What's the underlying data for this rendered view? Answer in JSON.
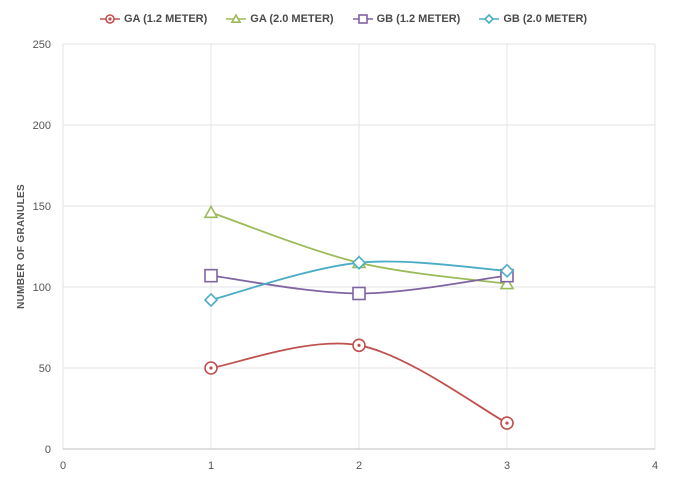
{
  "chart_data": {
    "type": "line",
    "title": "",
    "xlabel": "",
    "ylabel": "NUMBER OF GRANULES",
    "xlim": [
      0,
      4
    ],
    "ylim": [
      0,
      250
    ],
    "x_ticks": [
      0,
      1,
      2,
      3,
      4
    ],
    "y_ticks": [
      0,
      50,
      100,
      150,
      200,
      250
    ],
    "grid": true,
    "legend_position": "top",
    "smooth": true,
    "x": [
      1,
      2,
      3
    ],
    "series": [
      {
        "name": "GA (1.2 METER)",
        "values": [
          50,
          64,
          16
        ],
        "color": "#c0504d",
        "marker": "circle-dot"
      },
      {
        "name": "GA (2.0 METER)",
        "values": [
          146,
          115,
          102
        ],
        "color": "#9bbb59",
        "marker": "triangle"
      },
      {
        "name": "GB (1.2 METER)",
        "values": [
          107,
          96,
          107
        ],
        "color": "#8064a2",
        "marker": "square"
      },
      {
        "name": "GB (2.0 METER)",
        "values": [
          92,
          115,
          110
        ],
        "color": "#4bacc6",
        "marker": "diamond"
      }
    ]
  }
}
